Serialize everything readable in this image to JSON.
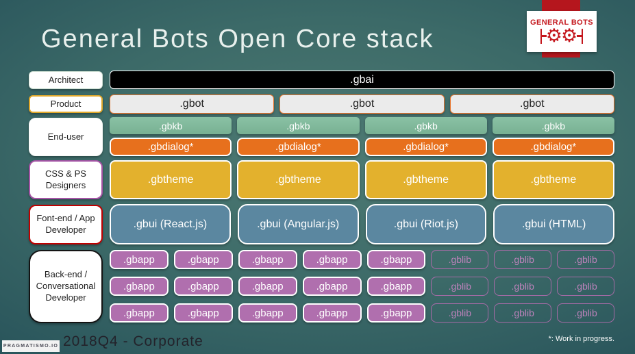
{
  "title": "General Bots Open Core stack",
  "brand": {
    "name": "GENERAL BOTS",
    "gear_glyph": "⚙",
    "red": "#c4161c"
  },
  "sidebar": {
    "architect": "Architect",
    "product": "Product",
    "end_user": "End-user",
    "designers": "CSS & PS Designers",
    "frontend": "Font-end / App Developer",
    "backend": "Back-end / Conversational Developer"
  },
  "stack": {
    "gbai": ".gbai",
    "gbot": [
      ".gbot",
      ".gbot",
      ".gbot"
    ],
    "gbkb": [
      ".gbkb",
      ".gbkb",
      ".gbkb",
      ".gbkb"
    ],
    "gbdialog": [
      ".gbdialog*",
      ".gbdialog*",
      ".gbdialog*",
      ".gbdialog*"
    ],
    "gbtheme": [
      ".gbtheme",
      ".gbtheme",
      ".gbtheme",
      ".gbtheme"
    ],
    "gbui": [
      ".gbui (React.js)",
      ".gbui (Angular.js)",
      ".gbui (Riot.js)",
      ".gbui (HTML)"
    ],
    "gbapp_rows": [
      [
        ".gbapp",
        ".gbapp",
        ".gbapp",
        ".gbapp",
        ".gbapp"
      ],
      [
        ".gbapp",
        ".gbapp",
        ".gbapp",
        ".gbapp",
        ".gbapp"
      ],
      [
        ".gbapp",
        ".gbapp",
        ".gbapp",
        ".gbapp",
        ".gbapp"
      ]
    ],
    "gblib_rows": [
      [
        ".gblib",
        ".gblib",
        ".gblib"
      ],
      [
        ".gblib",
        ".gblib",
        ".gblib"
      ],
      [
        ".gblib",
        ".gblib",
        ".gblib"
      ]
    ]
  },
  "footer": {
    "logo": "PRAGMATISMO.IO",
    "caption": "2018Q4 - Corporate",
    "note": "*: Work in progress."
  },
  "colors": {
    "gbkb_green": "#7db89b",
    "gbdialog_orange": "#e7701d",
    "gbtheme_gold": "#e3b12d",
    "gbui_blue": "#5b87a0",
    "gbapp_purple": "#b06fae",
    "gblib_purple": "#a76ba7",
    "brand_red": "#b5161d",
    "background_center": "#4e7a73",
    "background_edge": "#15323e"
  }
}
